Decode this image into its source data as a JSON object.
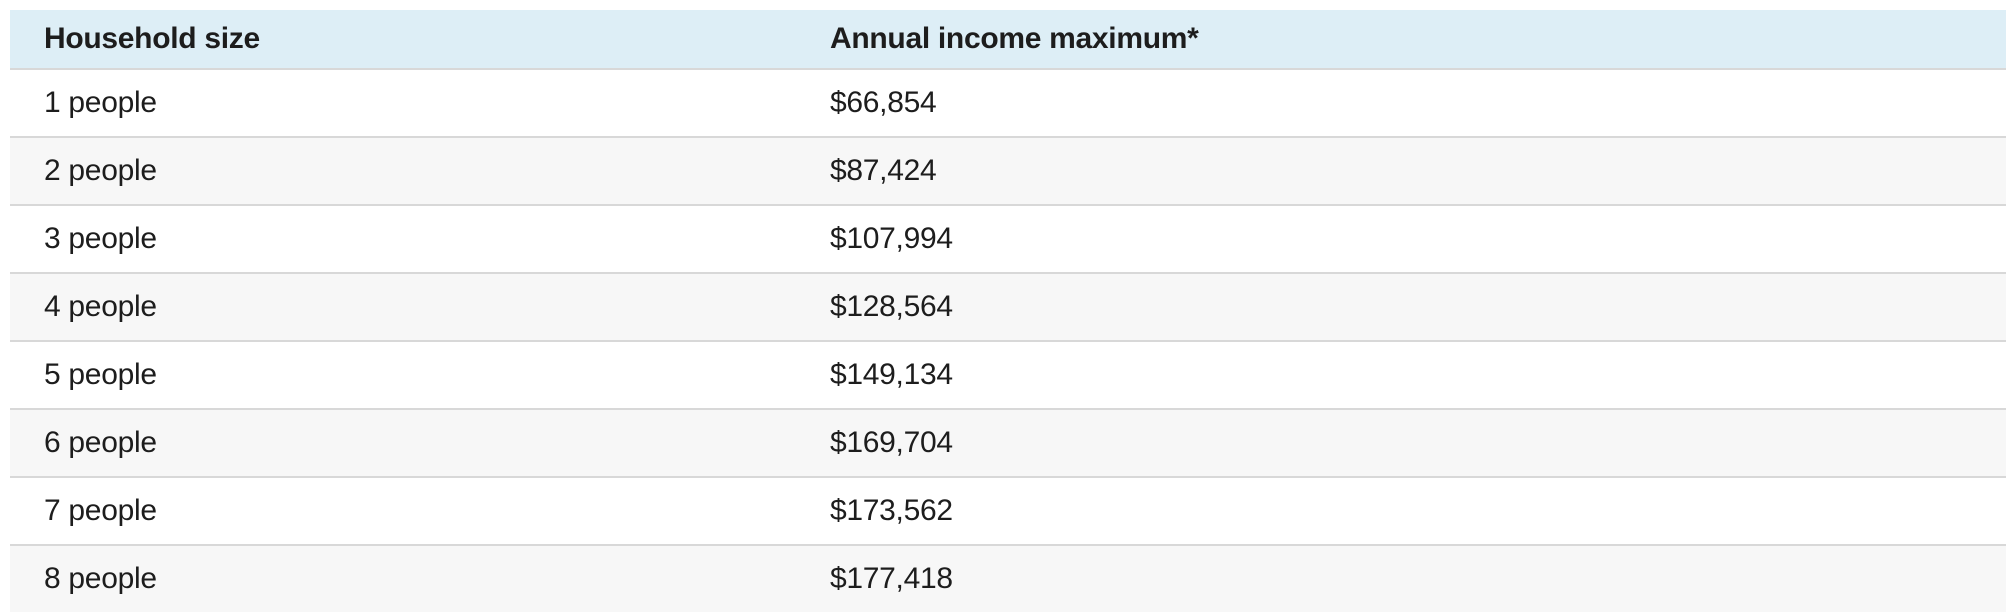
{
  "table": {
    "columns": [
      {
        "label": "Household size"
      },
      {
        "label": "Annual income maximum*"
      }
    ],
    "rows": [
      {
        "household": "1 people",
        "income": "$66,854"
      },
      {
        "household": "2 people",
        "income": "$87,424"
      },
      {
        "household": "3 people",
        "income": "$107,994"
      },
      {
        "household": "4 people",
        "income": "$128,564"
      },
      {
        "household": "5 people",
        "income": "$149,134"
      },
      {
        "household": "6 people",
        "income": "$169,704"
      },
      {
        "household": "7 people",
        "income": "$173,562"
      },
      {
        "household": "8 people",
        "income": "$177,418"
      }
    ]
  },
  "colors": {
    "page_bg": "#ffffff",
    "header_bg": "#ddeef6",
    "row_odd_bg": "#ffffff",
    "row_even_bg": "#f7f7f7",
    "divider": "#d8d8d8",
    "text": "#1d1d1d"
  }
}
